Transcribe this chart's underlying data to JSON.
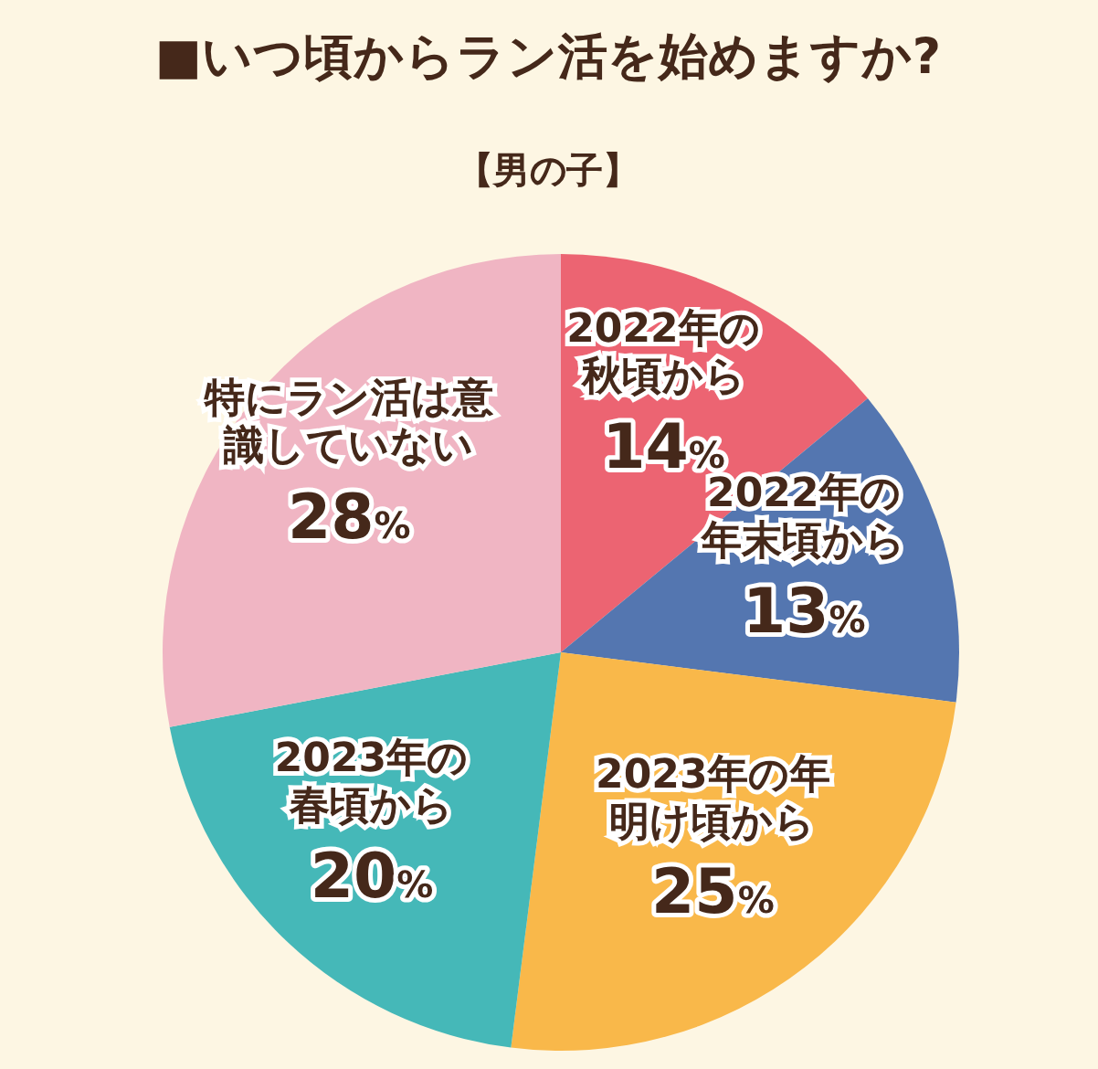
{
  "chart_data": {
    "type": "pie",
    "title": "■いつ頃からラン活を始めますか?",
    "subtitle": "【男の子】",
    "categories": [
      "2022年の秋頃から",
      "2022年の年末頃から",
      "2023年の年明け頃から",
      "2023年の春頃から",
      "特にラン活は意識していない"
    ],
    "values": [
      14,
      13,
      25,
      20,
      28
    ],
    "value_labels": [
      "14%",
      "13%",
      "25%",
      "20%",
      "28%"
    ],
    "colors": [
      "#ec6472",
      "#5476b0",
      "#f9b84a",
      "#45b8b8",
      "#f0b5c3"
    ],
    "legend": false
  }
}
